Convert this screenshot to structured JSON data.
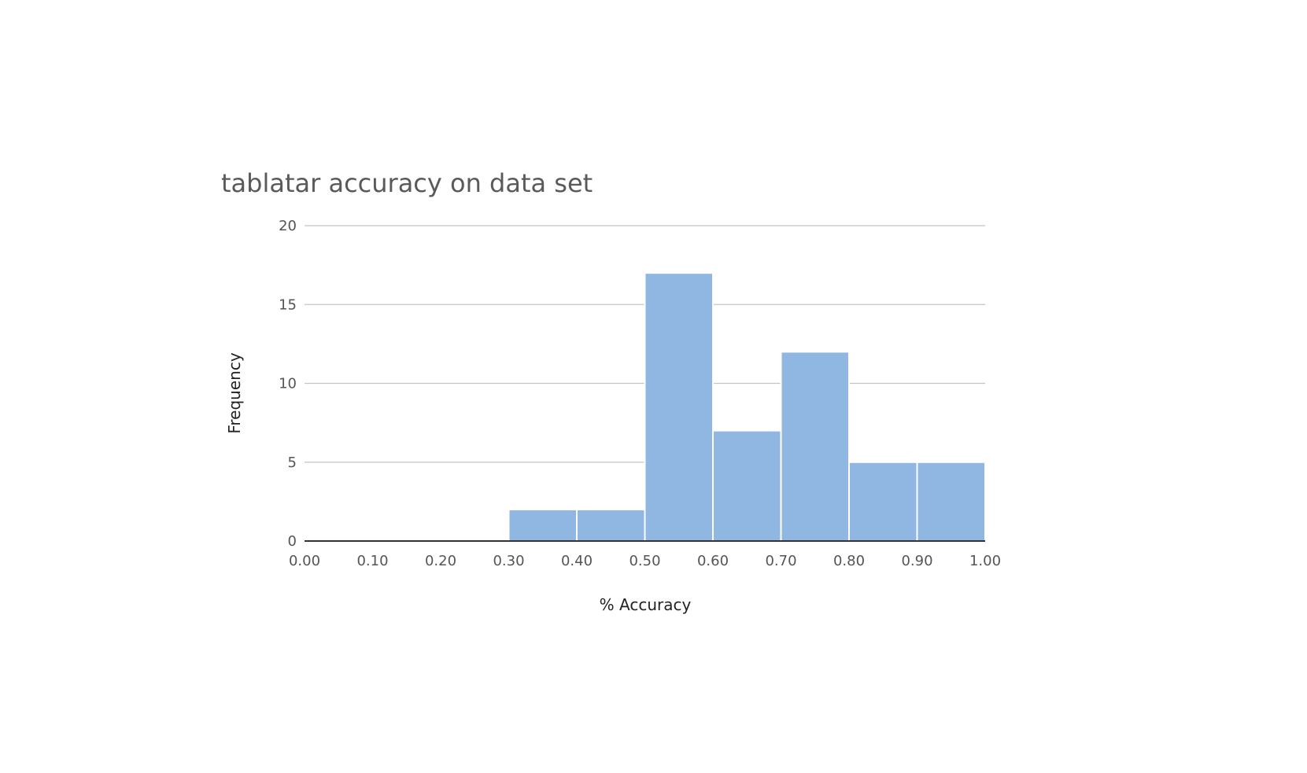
{
  "chart_data": {
    "type": "bar",
    "title": "tablatar accuracy on data set",
    "xlabel": "% Accuracy",
    "ylabel": "Frequency",
    "bin_edges": [
      0.0,
      0.1,
      0.2,
      0.3,
      0.4,
      0.5,
      0.6,
      0.7,
      0.8,
      0.9,
      1.0
    ],
    "x_tick_labels": [
      "0.00",
      "0.10",
      "0.20",
      "0.30",
      "0.40",
      "0.50",
      "0.60",
      "0.70",
      "0.80",
      "0.90",
      "1.00"
    ],
    "values": [
      0,
      0,
      0,
      2,
      2,
      17,
      7,
      12,
      5,
      5
    ],
    "xlim": [
      0,
      1
    ],
    "ylim": [
      0,
      20
    ],
    "y_ticks": [
      0,
      5,
      10,
      15,
      20
    ],
    "y_tick_labels": [
      "0",
      "5",
      "10",
      "15",
      "20"
    ],
    "grid": true,
    "legend": "none",
    "bar_color": "#8fb7e2"
  }
}
